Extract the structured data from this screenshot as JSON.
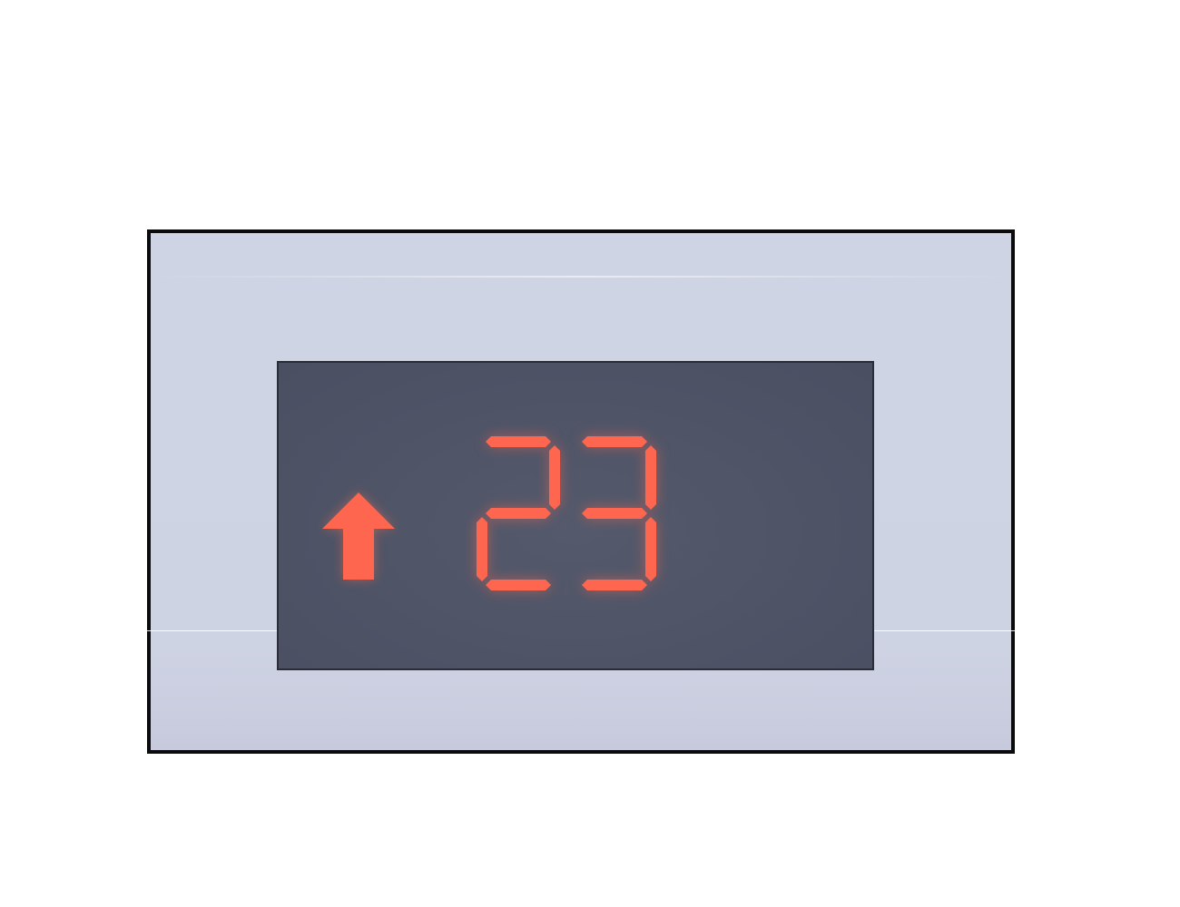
{
  "display": {
    "direction": "up",
    "direction_icon": "arrow-up-icon",
    "floor": "23",
    "digit_color": "#ff6650",
    "screen_color": "#4e5366",
    "panel_color": "#cfd4e4"
  }
}
